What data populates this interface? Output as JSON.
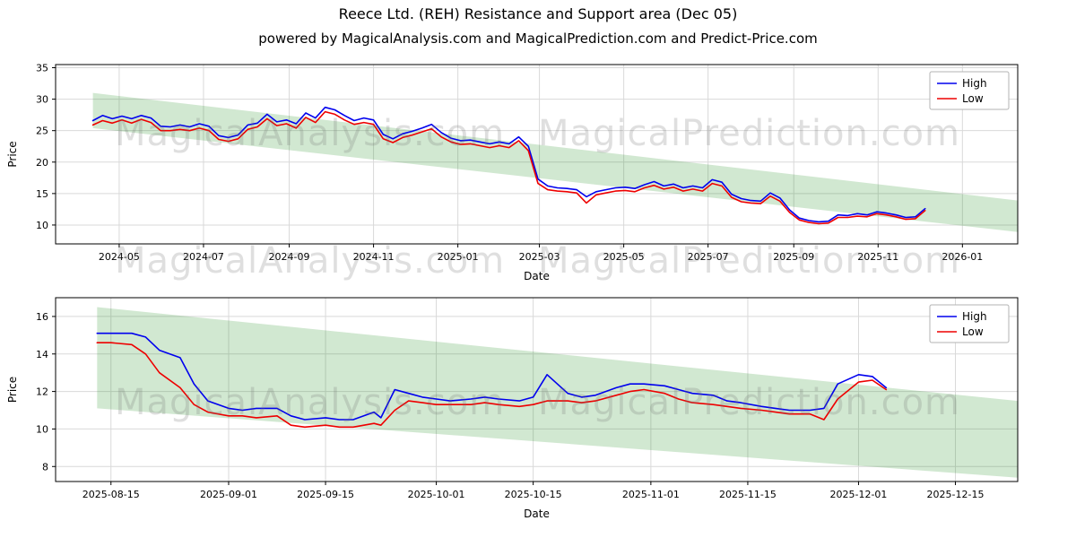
{
  "title": "Reece Ltd. (REH) Resistance and Support area (Dec 05)",
  "subtitle": "powered by MagicalAnalysis.com and MagicalPrediction.com and Predict-Price.com",
  "watermark": {
    "left": "MagicalAnalysis.com",
    "right": "MagicalPrediction.com"
  },
  "colors": {
    "high": "#0000ee",
    "low": "#ee0000",
    "band": "#008000",
    "grid": "#d9d9d9",
    "spine": "#000000",
    "legend_border": "#b3b3b3"
  },
  "chart_data": [
    {
      "type": "line",
      "xlabel": "Date",
      "ylabel": "Price",
      "grid": true,
      "legend": {
        "position": "upper right",
        "entries": [
          "High",
          "Low"
        ]
      },
      "xlim": [
        "2024-03-16",
        "2026-02-10"
      ],
      "ylim": [
        7.0,
        35.5
      ],
      "y_ticks": [
        10,
        15,
        20,
        25,
        30,
        35
      ],
      "x_tick_dates": [
        "2024-05-01",
        "2024-07-01",
        "2024-09-01",
        "2024-11-01",
        "2025-01-01",
        "2025-03-01",
        "2025-05-01",
        "2025-07-01",
        "2025-09-01",
        "2025-11-01",
        "2026-01-01"
      ],
      "x_tick_labels": [
        "2024-05",
        "2024-07",
        "2024-09",
        "2024-11",
        "2025-01",
        "2025-03",
        "2025-05",
        "2025-07",
        "2025-09",
        "2025-11",
        "2026-01"
      ],
      "band": {
        "dates": [
          "2024-04-12",
          "2026-02-10"
        ],
        "upper": [
          31.0,
          13.9
        ],
        "lower": [
          25.4,
          8.9
        ]
      },
      "dates": [
        "2024-04-12",
        "2024-04-19",
        "2024-04-26",
        "2024-05-03",
        "2024-05-10",
        "2024-05-17",
        "2024-05-24",
        "2024-05-31",
        "2024-06-07",
        "2024-06-14",
        "2024-06-21",
        "2024-06-28",
        "2024-07-05",
        "2024-07-12",
        "2024-07-19",
        "2024-07-26",
        "2024-08-02",
        "2024-08-09",
        "2024-08-16",
        "2024-08-23",
        "2024-08-30",
        "2024-09-06",
        "2024-09-13",
        "2024-09-20",
        "2024-09-27",
        "2024-10-04",
        "2024-10-11",
        "2024-10-18",
        "2024-10-25",
        "2024-11-01",
        "2024-11-08",
        "2024-11-15",
        "2024-11-22",
        "2024-11-29",
        "2024-12-06",
        "2024-12-13",
        "2024-12-20",
        "2024-12-27",
        "2025-01-03",
        "2025-01-10",
        "2025-01-17",
        "2025-01-24",
        "2025-01-31",
        "2025-02-07",
        "2025-02-14",
        "2025-02-21",
        "2025-02-28",
        "2025-03-07",
        "2025-03-14",
        "2025-03-21",
        "2025-03-28",
        "2025-04-04",
        "2025-04-11",
        "2025-04-18",
        "2025-04-25",
        "2025-05-02",
        "2025-05-09",
        "2025-05-16",
        "2025-05-23",
        "2025-05-30",
        "2025-06-06",
        "2025-06-13",
        "2025-06-20",
        "2025-06-27",
        "2025-07-04",
        "2025-07-11",
        "2025-07-18",
        "2025-07-25",
        "2025-08-01",
        "2025-08-08",
        "2025-08-15",
        "2025-08-22",
        "2025-08-29",
        "2025-09-05",
        "2025-09-12",
        "2025-09-19",
        "2025-09-26",
        "2025-10-03",
        "2025-10-10",
        "2025-10-17",
        "2025-10-24",
        "2025-10-31",
        "2025-11-07",
        "2025-11-14",
        "2025-11-21",
        "2025-11-28",
        "2025-12-05"
      ],
      "series": [
        {
          "name": "High",
          "color_key": "high",
          "values": [
            26.6,
            27.4,
            26.9,
            27.3,
            26.9,
            27.4,
            27.0,
            25.7,
            25.6,
            25.9,
            25.6,
            26.1,
            25.7,
            24.2,
            23.9,
            24.3,
            25.9,
            26.2,
            27.6,
            26.4,
            26.7,
            26.1,
            27.8,
            27.0,
            28.7,
            28.3,
            27.4,
            26.6,
            27.0,
            26.7,
            24.4,
            23.7,
            24.5,
            24.9,
            25.4,
            26.0,
            24.7,
            23.8,
            23.4,
            23.5,
            23.2,
            22.9,
            23.2,
            22.9,
            24.0,
            22.5,
            17.3,
            16.2,
            15.9,
            15.8,
            15.6,
            14.5,
            15.3,
            15.6,
            15.9,
            16.0,
            15.8,
            16.4,
            16.9,
            16.2,
            16.5,
            15.9,
            16.2,
            15.9,
            17.2,
            16.8,
            14.9,
            14.2,
            13.9,
            13.8,
            15.1,
            14.3,
            12.4,
            11.1,
            10.7,
            10.5,
            10.6,
            11.6,
            11.5,
            11.8,
            11.6,
            12.1,
            11.9,
            11.6,
            11.2,
            11.3,
            12.6
          ]
        },
        {
          "name": "Low",
          "color_key": "low",
          "values": [
            25.9,
            26.6,
            26.2,
            26.7,
            26.2,
            26.8,
            26.3,
            25.0,
            25.0,
            25.2,
            25.0,
            25.4,
            25.0,
            23.6,
            23.3,
            23.7,
            25.2,
            25.6,
            26.9,
            25.8,
            26.1,
            25.4,
            27.1,
            26.3,
            28.0,
            27.6,
            26.7,
            26.0,
            26.3,
            26.0,
            23.7,
            23.1,
            23.9,
            24.3,
            24.8,
            25.3,
            24.0,
            23.2,
            22.8,
            22.9,
            22.6,
            22.3,
            22.6,
            22.3,
            23.4,
            21.8,
            16.6,
            15.6,
            15.4,
            15.3,
            15.1,
            13.5,
            14.8,
            15.1,
            15.4,
            15.5,
            15.3,
            15.9,
            16.3,
            15.7,
            16.0,
            15.4,
            15.7,
            15.4,
            16.6,
            16.2,
            14.4,
            13.7,
            13.5,
            13.4,
            14.6,
            13.8,
            12.0,
            10.8,
            10.4,
            10.2,
            10.3,
            11.2,
            11.2,
            11.4,
            11.3,
            11.8,
            11.6,
            11.3,
            10.9,
            11.0,
            12.3
          ]
        }
      ]
    },
    {
      "type": "line",
      "xlabel": "Date",
      "ylabel": "Price",
      "grid": true,
      "legend": {
        "position": "upper right",
        "entries": [
          "High",
          "Low"
        ]
      },
      "xlim": [
        "2025-08-07",
        "2025-12-24"
      ],
      "ylim": [
        7.2,
        17.0
      ],
      "y_ticks": [
        8,
        10,
        12,
        14,
        16
      ],
      "x_tick_dates": [
        "2025-08-15",
        "2025-09-01",
        "2025-09-15",
        "2025-10-01",
        "2025-10-15",
        "2025-11-01",
        "2025-11-15",
        "2025-12-01",
        "2025-12-15"
      ],
      "x_tick_labels": [
        "2025-08-15",
        "2025-09-01",
        "2025-09-15",
        "2025-10-01",
        "2025-10-15",
        "2025-11-01",
        "2025-11-15",
        "2025-12-01",
        "2025-12-15"
      ],
      "band": {
        "dates": [
          "2025-08-13",
          "2025-12-24"
        ],
        "upper": [
          16.5,
          11.5
        ],
        "lower": [
          11.1,
          7.4
        ]
      },
      "dates": [
        "2025-08-13",
        "2025-08-15",
        "2025-08-18",
        "2025-08-20",
        "2025-08-22",
        "2025-08-25",
        "2025-08-27",
        "2025-08-29",
        "2025-09-01",
        "2025-09-03",
        "2025-09-05",
        "2025-09-08",
        "2025-09-10",
        "2025-09-12",
        "2025-09-15",
        "2025-09-17",
        "2025-09-19",
        "2025-09-22",
        "2025-09-23",
        "2025-09-25",
        "2025-09-27",
        "2025-09-29",
        "2025-10-01",
        "2025-10-03",
        "2025-10-06",
        "2025-10-08",
        "2025-10-10",
        "2025-10-13",
        "2025-10-15",
        "2025-10-17",
        "2025-10-20",
        "2025-10-22",
        "2025-10-24",
        "2025-10-27",
        "2025-10-29",
        "2025-10-31",
        "2025-11-03",
        "2025-11-05",
        "2025-11-07",
        "2025-11-10",
        "2025-11-12",
        "2025-11-14",
        "2025-11-17",
        "2025-11-19",
        "2025-11-21",
        "2025-11-24",
        "2025-11-26",
        "2025-11-28",
        "2025-12-01",
        "2025-12-03",
        "2025-12-05"
      ],
      "series": [
        {
          "name": "High",
          "color_key": "high",
          "values": [
            15.1,
            15.1,
            15.1,
            14.9,
            14.2,
            13.8,
            12.4,
            11.5,
            11.1,
            11.0,
            11.1,
            11.1,
            10.7,
            10.5,
            10.6,
            10.5,
            10.5,
            10.9,
            10.6,
            12.1,
            11.9,
            11.7,
            11.6,
            11.5,
            11.6,
            11.7,
            11.6,
            11.5,
            11.7,
            12.9,
            11.9,
            11.7,
            11.8,
            12.2,
            12.4,
            12.4,
            12.3,
            12.1,
            11.9,
            11.8,
            11.5,
            11.4,
            11.2,
            11.1,
            11.0,
            11.0,
            11.1,
            12.4,
            12.9,
            12.8,
            12.2
          ]
        },
        {
          "name": "Low",
          "color_key": "low",
          "values": [
            14.6,
            14.6,
            14.5,
            14.0,
            13.0,
            12.2,
            11.3,
            10.9,
            10.7,
            10.7,
            10.6,
            10.7,
            10.2,
            10.1,
            10.2,
            10.1,
            10.1,
            10.3,
            10.2,
            11.0,
            11.5,
            11.4,
            11.3,
            11.3,
            11.3,
            11.4,
            11.3,
            11.2,
            11.3,
            11.5,
            11.5,
            11.4,
            11.5,
            11.8,
            12.0,
            12.1,
            11.9,
            11.6,
            11.4,
            11.3,
            11.2,
            11.1,
            11.0,
            10.9,
            10.8,
            10.8,
            10.5,
            11.6,
            12.5,
            12.6,
            12.1
          ]
        }
      ]
    }
  ]
}
